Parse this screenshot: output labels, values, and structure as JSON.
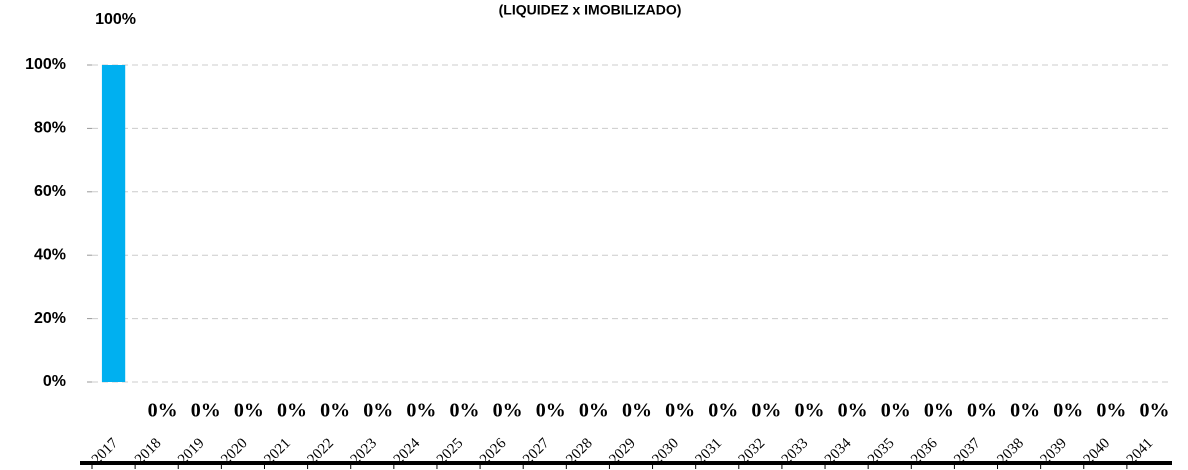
{
  "chart_data": {
    "type": "bar",
    "title": "(LIQUIDEZ x IMOBILIZADO)",
    "categories": [
      "2017",
      "2018",
      "2019",
      "2020",
      "2021",
      "2022",
      "2023",
      "2024",
      "2025",
      "2026",
      "2027",
      "2028",
      "2029",
      "2030",
      "2031",
      "2032",
      "2033",
      "2034",
      "2035",
      "2036",
      "2037",
      "2038",
      "2039",
      "2040",
      "2041"
    ],
    "values": [
      100,
      0,
      0,
      0,
      0,
      0,
      0,
      0,
      0,
      0,
      0,
      0,
      0,
      0,
      0,
      0,
      0,
      0,
      0,
      0,
      0,
      0,
      0,
      0,
      0
    ],
    "value_labels": [
      "100%",
      "0%",
      "0%",
      "0%",
      "0%",
      "0%",
      "0%",
      "0%",
      "0%",
      "0%",
      "0%",
      "0%",
      "0%",
      "0%",
      "0%",
      "0%",
      "0%",
      "0%",
      "0%",
      "0%",
      "0%",
      "0%",
      "0%",
      "0%",
      "0%"
    ],
    "color": "#00b0f0",
    "ylim": [
      0,
      100
    ],
    "yticks": [
      {
        "value": 0,
        "label": "0%"
      },
      {
        "value": 20,
        "label": "20%"
      },
      {
        "value": 40,
        "label": "40%"
      },
      {
        "value": 60,
        "label": "60%"
      },
      {
        "value": 80,
        "label": "80%"
      },
      {
        "value": 100,
        "label": "100%"
      }
    ],
    "grid": true
  }
}
